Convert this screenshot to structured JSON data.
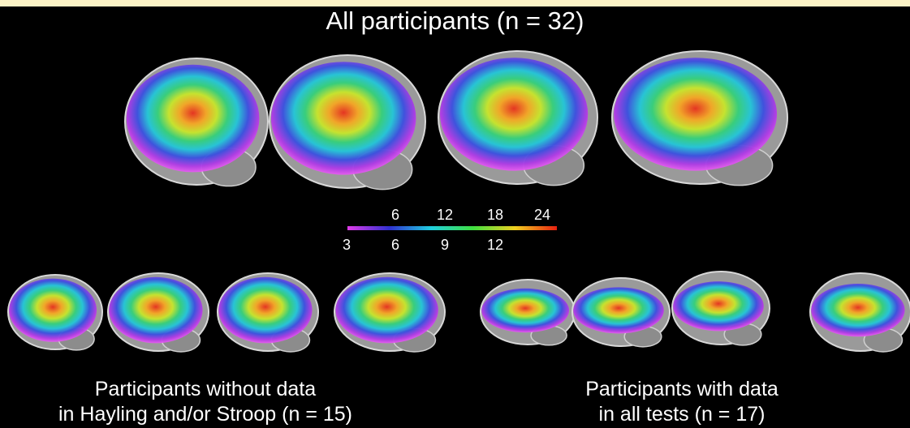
{
  "title": "All participants (n = 32)",
  "colorbar": {
    "top_labels": [
      "6",
      "12",
      "18",
      "24"
    ],
    "bottom_labels": [
      "3",
      "6",
      "9",
      "12"
    ]
  },
  "groups": [
    {
      "caption": [
        "Participants without data",
        "in Hayling and/or Stroop (n = 15)"
      ]
    },
    {
      "caption": [
        "Participants with data",
        "in all tests (n = 17)"
      ]
    }
  ]
}
